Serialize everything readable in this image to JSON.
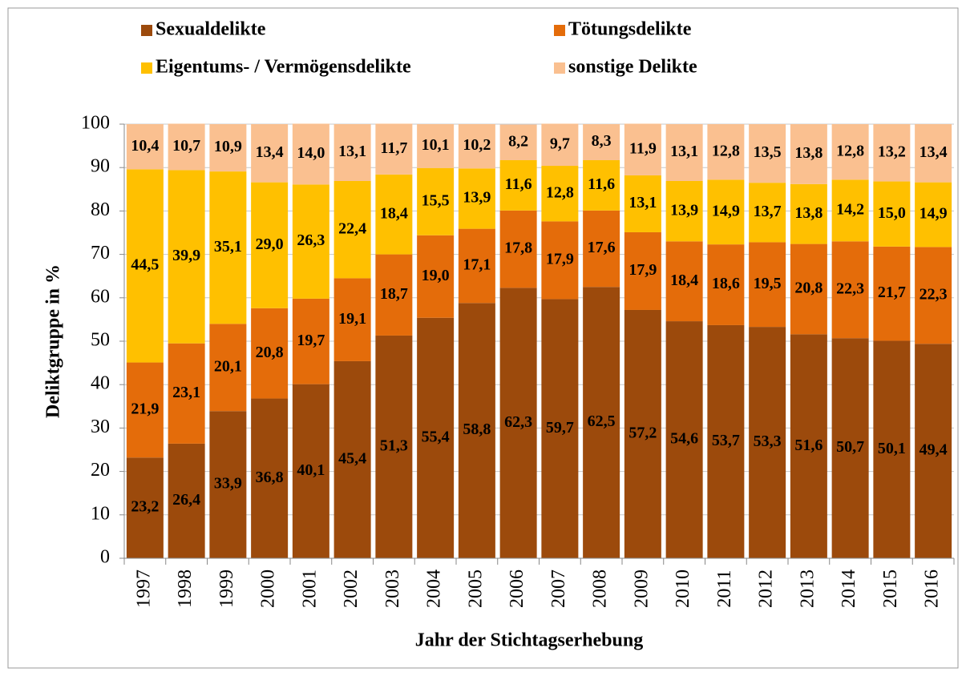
{
  "chart_data": {
    "type": "stacked_bar",
    "xlabel": "Jahr der Stichtagserhebung",
    "ylabel": "Deliktgruppe in %",
    "categories": [
      "1997",
      "1998",
      "1999",
      "2000",
      "2001",
      "2002",
      "2003",
      "2004",
      "2005",
      "2006",
      "2007",
      "2008",
      "2009",
      "2010",
      "2011",
      "2012",
      "2013",
      "2014",
      "2015",
      "2016"
    ],
    "series": [
      {
        "name": "Sexualdelikte",
        "color": "#9c4a0c",
        "values": [
          23.2,
          26.4,
          33.9,
          36.8,
          40.1,
          45.4,
          51.3,
          55.4,
          58.8,
          62.3,
          59.7,
          62.5,
          57.2,
          54.6,
          53.7,
          53.3,
          51.6,
          50.7,
          50.1,
          49.4
        ],
        "value_labels": [
          "23,2",
          "26,4",
          "33,9",
          "36,8",
          "40,1",
          "45,4",
          "51,3",
          "55,4",
          "58,8",
          "62,3",
          "59,7",
          "62,5",
          "57,2",
          "54,6",
          "53,7",
          "53,3",
          "51,6",
          "50,7",
          "50,1",
          "49,4"
        ]
      },
      {
        "name": "Tötungsdelikte",
        "color": "#e46c0a",
        "values": [
          21.9,
          23.1,
          20.1,
          20.8,
          19.7,
          19.1,
          18.7,
          19.0,
          17.1,
          17.8,
          17.9,
          17.6,
          17.9,
          18.4,
          18.6,
          19.5,
          20.8,
          22.3,
          21.7,
          22.3
        ],
        "value_labels": [
          "21,9",
          "23,1",
          "20,1",
          "20,8",
          "19,7",
          "19,1",
          "18,7",
          "19,0",
          "17,1",
          "17,8",
          "17,9",
          "17,6",
          "17,9",
          "18,4",
          "18,6",
          "19,5",
          "20,8",
          "22,3",
          "21,7",
          "22,3"
        ]
      },
      {
        "name": "Eigentums- / Vermögensdelikte",
        "color": "#ffc000",
        "values": [
          44.5,
          39.9,
          35.1,
          29.0,
          26.3,
          22.4,
          18.4,
          15.5,
          13.9,
          11.6,
          12.8,
          11.6,
          13.1,
          13.9,
          14.9,
          13.7,
          13.8,
          14.2,
          15.0,
          14.9
        ],
        "value_labels": [
          "44,5",
          "39,9",
          "35,1",
          "29,0",
          "26,3",
          "22,4",
          "18,4",
          "15,5",
          "13,9",
          "11,6",
          "12,8",
          "11,6",
          "13,1",
          "13,9",
          "14,9",
          "13,7",
          "13,8",
          "14,2",
          "15,0",
          "14,9"
        ]
      },
      {
        "name": "sonstige Delikte",
        "color": "#fac090",
        "values": [
          10.4,
          10.7,
          10.9,
          13.4,
          14.0,
          13.1,
          11.7,
          10.1,
          10.2,
          8.2,
          9.7,
          8.3,
          11.9,
          13.1,
          12.8,
          13.5,
          13.8,
          12.8,
          13.2,
          13.4
        ],
        "value_labels": [
          "10,4",
          "10,7",
          "10,9",
          "13,4",
          "14,0",
          "13,1",
          "11,7",
          "10,1",
          "10,2",
          "8,2",
          "9,7",
          "8,3",
          "11,9",
          "13,1",
          "12,8",
          "13,5",
          "13,8",
          "12,8",
          "13,2",
          "13,4"
        ]
      }
    ],
    "ylim": [
      0,
      100
    ],
    "yticks": [
      0,
      10,
      20,
      30,
      40,
      50,
      60,
      70,
      80,
      90,
      100
    ],
    "grid": true
  }
}
